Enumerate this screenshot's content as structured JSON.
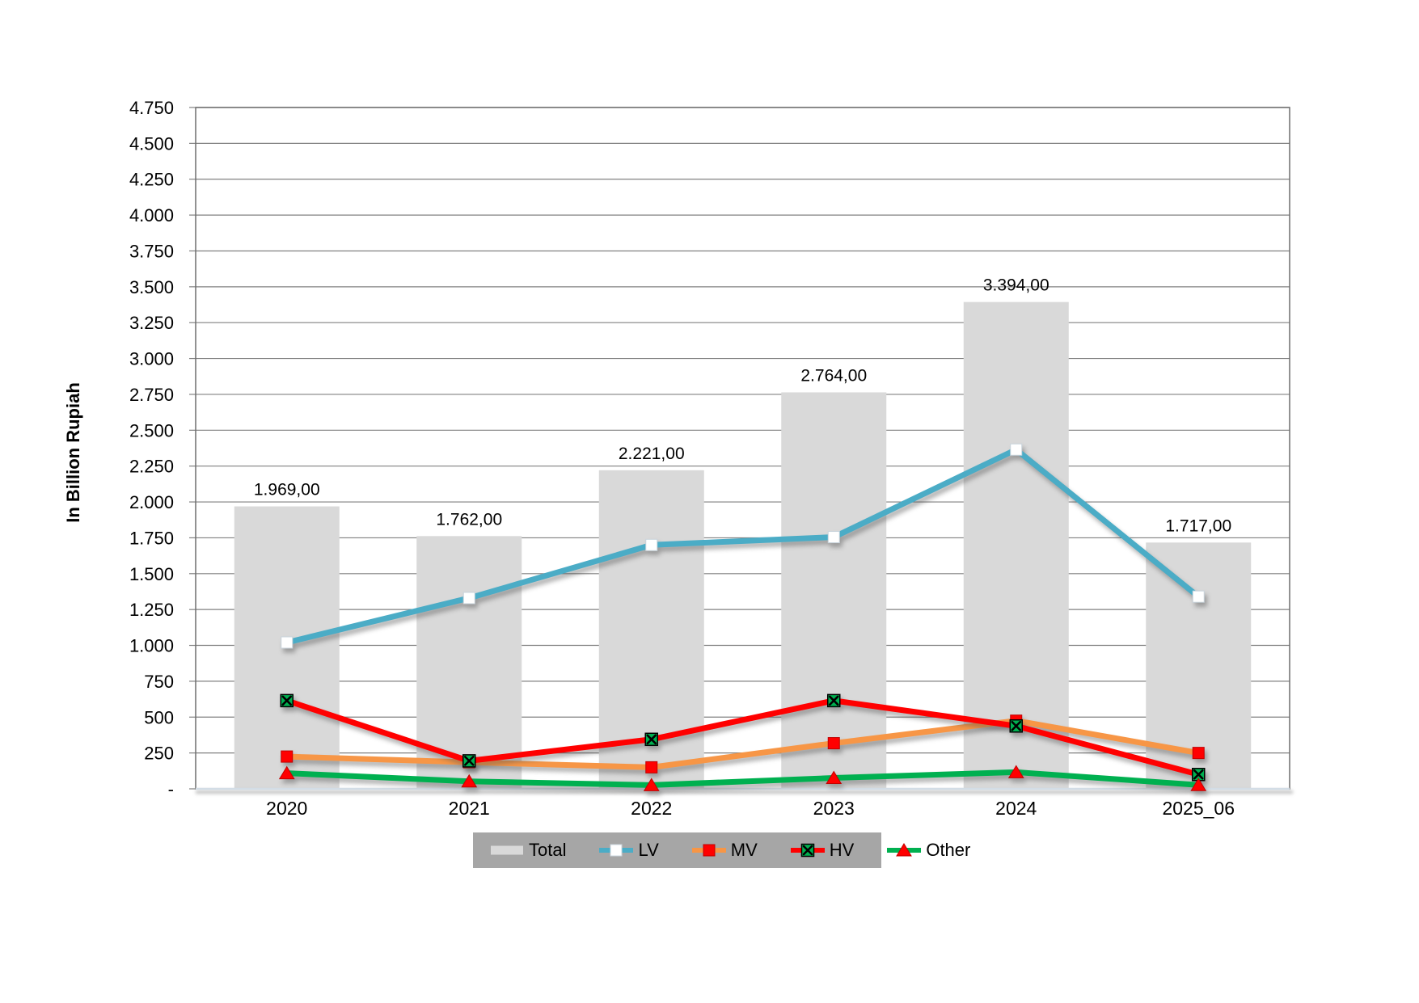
{
  "chart_data": {
    "type": "combo-bar-line",
    "title": "",
    "ylabel": "In Billion Rupiah",
    "categories": [
      "2020",
      "2021",
      "2022",
      "2023",
      "2024",
      "2025_06"
    ],
    "y_axis": {
      "min": 0,
      "max": 4750,
      "step": 250,
      "tick_labels": [
        "-",
        "250",
        "500",
        "750",
        "1.000",
        "1.250",
        "1.500",
        "1.750",
        "2.000",
        "2.250",
        "2.500",
        "2.750",
        "3.000",
        "3.250",
        "3.500",
        "3.750",
        "4.000",
        "4.250",
        "4.500",
        "4.750"
      ]
    },
    "grid": true,
    "bar_series": {
      "name": "Total",
      "values": [
        1969,
        1762,
        2221,
        2764,
        3394,
        1717
      ],
      "data_labels": [
        "1.969,00",
        "1.762,00",
        "2.221,00",
        "2.764,00",
        "3.394,00",
        "1.717,00"
      ],
      "color": "#D9D9D9"
    },
    "line_series": [
      {
        "name": "LV",
        "values": [
          1020,
          1330,
          1700,
          1755,
          2365,
          1340
        ],
        "color": "#4BACC6",
        "marker": "square-white"
      },
      {
        "name": "MV",
        "values": [
          225,
          185,
          150,
          318,
          475,
          250
        ],
        "color": "#F79646",
        "marker": "square-red"
      },
      {
        "name": "HV",
        "values": [
          615,
          195,
          345,
          615,
          438,
          100
        ],
        "color": "#FF0000",
        "marker": "x-green"
      },
      {
        "name": "Other",
        "values": [
          109,
          52,
          26,
          76,
          116,
          27
        ],
        "color": "#00B050",
        "marker": "triangle-red"
      }
    ],
    "legend": {
      "position": "bottom",
      "background": "#A6A6A6",
      "items": [
        "Total",
        "LV",
        "MV",
        "HV",
        "Other"
      ]
    },
    "colors": {
      "gridline": "#808080",
      "plot_border": "#6E6E6E",
      "baseline": "#D3DDE6",
      "marker_white": "#FFFFFF",
      "marker_red": "#FF0000",
      "marker_green": "#00B050",
      "text": "#000000",
      "background": "#FFFFFF"
    }
  }
}
